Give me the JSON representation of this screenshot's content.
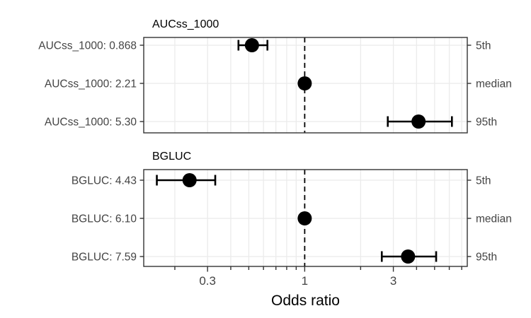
{
  "figure": {
    "background": "#ffffff"
  },
  "chart_data": {
    "type": "scatter",
    "subtype": "forest-plot-odds-ratio-with-error-bars",
    "title": "",
    "xlabel": "Odds ratio",
    "ylabel": "",
    "x_scale": "log10",
    "xlim": [
      0.136,
      7.5
    ],
    "x_ticks_major": {
      "values": [
        0.3,
        1,
        3
      ],
      "labels": [
        "0.3",
        "1",
        "3"
      ]
    },
    "x_ticks_minor": [
      0.2,
      0.4,
      0.5,
      0.6,
      0.7,
      0.8,
      0.9,
      2,
      4,
      5,
      6,
      7
    ],
    "reference_line_x": 1,
    "grid": true,
    "legend": "none",
    "right_axis_labels": [
      "5th",
      "median",
      "95th"
    ],
    "panels": [
      {
        "title": "AUCss_1000",
        "rows": [
          {
            "label": "AUCss_1000: 0.868",
            "percentile": "5th",
            "or": 0.52,
            "ci_low": 0.44,
            "ci_high": 0.63
          },
          {
            "label": "AUCss_1000: 2.21",
            "percentile": "median",
            "or": 1.0,
            "ci_low": 1.0,
            "ci_high": 1.0
          },
          {
            "label": "AUCss_1000: 5.30",
            "percentile": "95th",
            "or": 4.1,
            "ci_low": 2.8,
            "ci_high": 6.2
          }
        ]
      },
      {
        "title": "BGLUC",
        "rows": [
          {
            "label": "BGLUC: 4.43",
            "percentile": "5th",
            "or": 0.24,
            "ci_low": 0.16,
            "ci_high": 0.33
          },
          {
            "label": "BGLUC: 6.10",
            "percentile": "median",
            "or": 1.0,
            "ci_low": 1.0,
            "ci_high": 1.0
          },
          {
            "label": "BGLUC: 7.59",
            "percentile": "95th",
            "or": 3.6,
            "ci_low": 2.6,
            "ci_high": 5.1
          }
        ]
      }
    ],
    "colors": {
      "point": "#000000",
      "error_bar": "#000000",
      "reference_line": "#000000",
      "grid": "#ebebeb",
      "panel_border": "#333333",
      "tick": "#333333",
      "axis_text": "#444444",
      "title_text": "#000000"
    }
  }
}
